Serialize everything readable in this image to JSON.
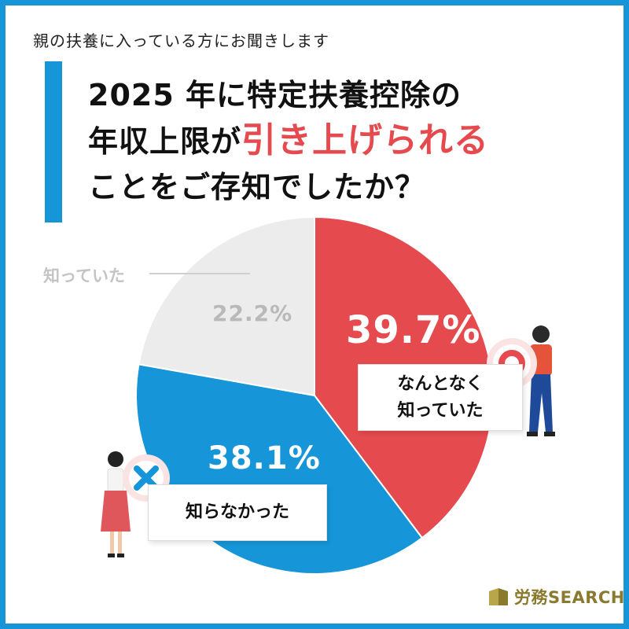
{
  "subtitle": "親の扶養に入っている方にお聞きします",
  "title": {
    "line1": "2025 年に特定扶養控除の",
    "line2_pre": "年収上限が",
    "line2_highlight": "引き上げられる",
    "line3": "ことをご存知でしたか？"
  },
  "chart_data": {
    "type": "pie",
    "slices": [
      {
        "label": "なんとなく知っていた",
        "value": 39.7,
        "color": "#e54b4e"
      },
      {
        "label": "知らなかった",
        "value": 38.1,
        "color": "#1696d8"
      },
      {
        "label": "知っていた",
        "value": 22.2,
        "color": "#ececec"
      }
    ],
    "percent_labels": {
      "know_vaguely": "39.7%",
      "didnt_know": "38.1%",
      "knew": "22.2%"
    },
    "callouts": {
      "know_vaguely_line1": "なんとなく",
      "know_vaguely_line2": "知っていた",
      "didnt_know": "知らなかった",
      "knew": "知っていた"
    }
  },
  "icons": {
    "circle": "circle-badge-icon",
    "cross": "cross-badge-icon"
  },
  "logo": {
    "text": "労務SEARCH"
  }
}
